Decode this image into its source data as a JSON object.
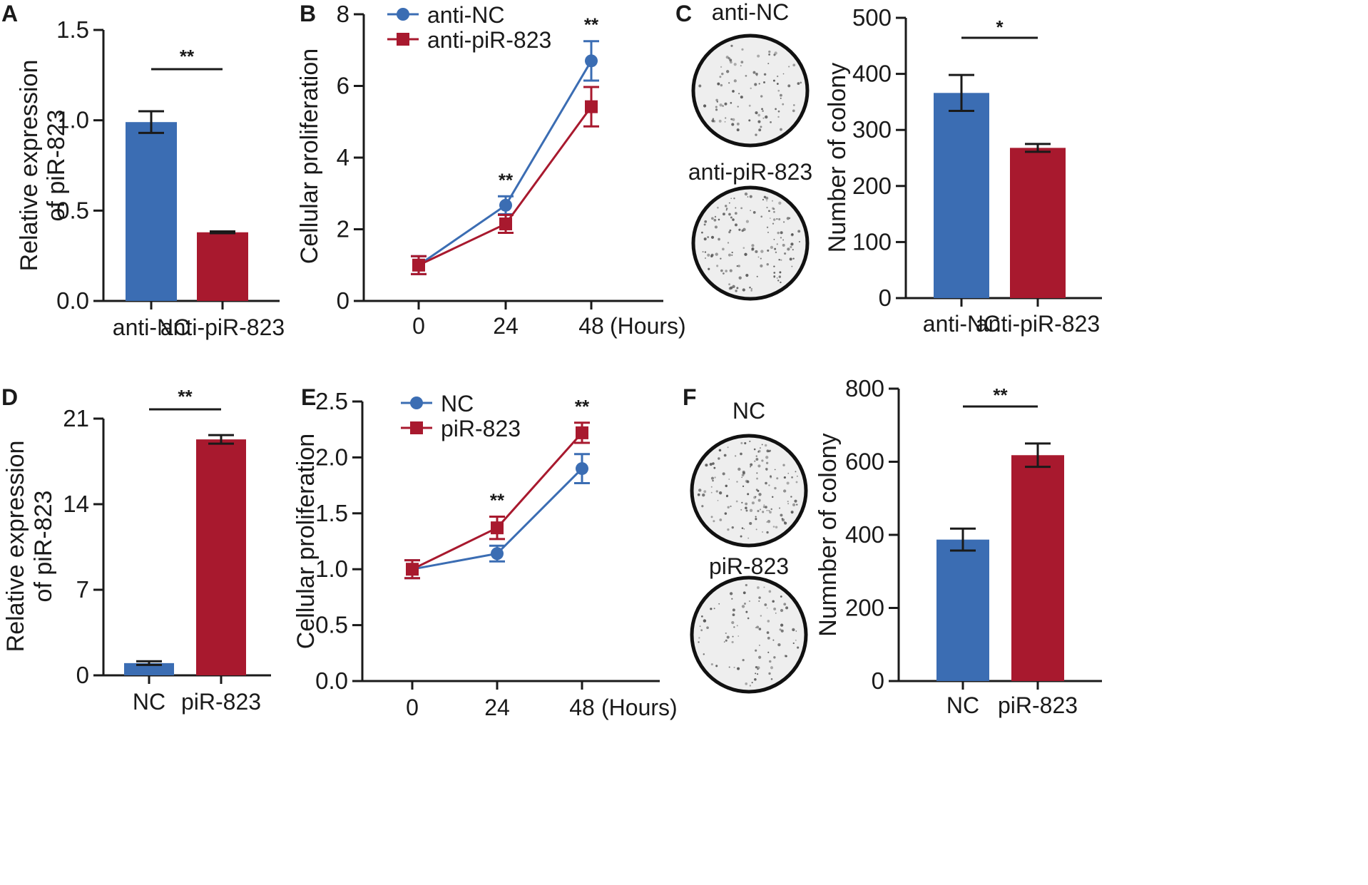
{
  "colors": {
    "blue": "#3b6db3",
    "red": "#a8192e",
    "axis": "#1a1a1a",
    "plate_fill": "#eeeeee"
  },
  "panels": {
    "A": {
      "letter": "A"
    },
    "B": {
      "letter": "B"
    },
    "C": {
      "letter": "C"
    },
    "D": {
      "letter": "D"
    },
    "E": {
      "letter": "E"
    },
    "F": {
      "letter": "F"
    }
  },
  "chart_data": [
    {
      "id": "A",
      "type": "bar",
      "ylabel": [
        "Relative expression",
        "of piR-823"
      ],
      "categories": [
        "anti-NC",
        "anti-piR-823"
      ],
      "values": [
        0.99,
        0.38
      ],
      "errors": [
        0.06,
        0.005
      ],
      "colors": [
        "blue",
        "red"
      ],
      "ylim": [
        0,
        1.5
      ],
      "yticks": [
        0.0,
        0.5,
        1.0,
        1.5
      ],
      "ytick_labels": [
        "0.0",
        "0.5",
        "1.0",
        "1.5"
      ],
      "significance": "**"
    },
    {
      "id": "B",
      "type": "line",
      "ylabel": [
        "Cellular proliferation"
      ],
      "x": [
        0,
        24,
        48
      ],
      "xtick_labels": [
        "0",
        "24",
        "48"
      ],
      "x_unit": "(Hours)",
      "ylim": [
        0,
        8
      ],
      "yticks": [
        0,
        2,
        4,
        6,
        8
      ],
      "ytick_labels": [
        "0",
        "2",
        "4",
        "6",
        "8"
      ],
      "series": [
        {
          "name": "anti-NC",
          "color": "blue",
          "marker": "circle",
          "values": [
            1.0,
            2.67,
            6.7
          ],
          "errors": [
            0.25,
            0.25,
            0.55
          ]
        },
        {
          "name": "anti-piR-823",
          "color": "red",
          "marker": "square",
          "values": [
            1.0,
            2.15,
            5.42
          ],
          "errors": [
            0.25,
            0.25,
            0.55
          ]
        }
      ],
      "annotations": [
        {
          "x": 24,
          "text": "**"
        },
        {
          "x": 48,
          "text": "**"
        }
      ]
    },
    {
      "id": "C",
      "type": "bar",
      "ylabel": [
        "Number of colony"
      ],
      "categories": [
        "anti-NC",
        "anti-piR-823"
      ],
      "values": [
        366,
        268
      ],
      "errors": [
        32,
        7
      ],
      "colors": [
        "blue",
        "red"
      ],
      "ylim": [
        0,
        500
      ],
      "yticks": [
        0,
        100,
        200,
        300,
        400,
        500
      ],
      "ytick_labels": [
        "0",
        "100",
        "200",
        "300",
        "400",
        "500"
      ],
      "significance": "*",
      "plates": [
        "anti-NC",
        "anti-piR-823"
      ]
    },
    {
      "id": "D",
      "type": "bar",
      "ylabel": [
        "Relative expression",
        "of piR-823"
      ],
      "categories": [
        "NC",
        "piR-823"
      ],
      "values": [
        1.0,
        19.3
      ],
      "errors": [
        0.15,
        0.35
      ],
      "colors": [
        "blue",
        "red"
      ],
      "ylim": [
        0,
        21
      ],
      "yticks": [
        0,
        7,
        14,
        21
      ],
      "ytick_labels": [
        "0",
        "7",
        "14",
        "21"
      ],
      "significance": "**"
    },
    {
      "id": "E",
      "type": "line",
      "ylabel": [
        "Cellular proliferation"
      ],
      "x": [
        0,
        24,
        48
      ],
      "xtick_labels": [
        "0",
        "24",
        "48"
      ],
      "x_unit": "(Hours)",
      "ylim": [
        0,
        2.5
      ],
      "yticks": [
        0.0,
        0.5,
        1.0,
        1.5,
        2.0,
        2.5
      ],
      "ytick_labels": [
        "0.0",
        "0.5",
        "1.0",
        "1.5",
        "2.0",
        "2.5"
      ],
      "series": [
        {
          "name": "NC",
          "color": "blue",
          "marker": "circle",
          "values": [
            1.0,
            1.14,
            1.9
          ],
          "errors": [
            0.08,
            0.07,
            0.13
          ]
        },
        {
          "name": "piR-823",
          "color": "red",
          "marker": "square",
          "values": [
            1.0,
            1.37,
            2.22
          ],
          "errors": [
            0.08,
            0.1,
            0.09
          ]
        }
      ],
      "annotations": [
        {
          "x": 24,
          "text": "**"
        },
        {
          "x": 48,
          "text": "**"
        }
      ]
    },
    {
      "id": "F",
      "type": "bar",
      "ylabel": [
        "Numnber of colony"
      ],
      "categories": [
        "NC",
        "piR-823"
      ],
      "values": [
        387,
        618
      ],
      "errors": [
        30,
        32
      ],
      "colors": [
        "blue",
        "red"
      ],
      "ylim": [
        0,
        800
      ],
      "yticks": [
        0,
        200,
        400,
        600,
        800
      ],
      "ytick_labels": [
        "0",
        "200",
        "400",
        "600",
        "800"
      ],
      "significance": "**",
      "plates": [
        "NC",
        "piR-823"
      ]
    }
  ]
}
